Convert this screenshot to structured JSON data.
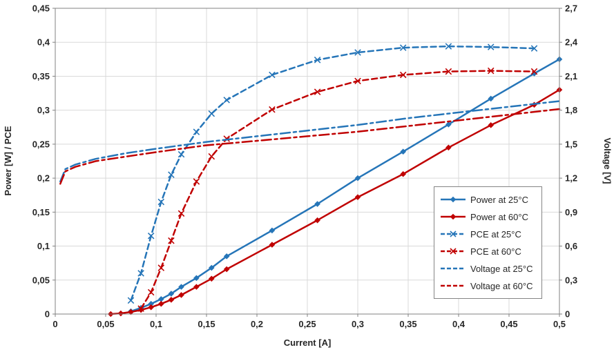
{
  "chart_data": {
    "type": "line",
    "title": "",
    "xlabel": "Current [A]",
    "ylabel_left": "Power [W] / PCE",
    "ylabel_right": "Voltage [V]",
    "xlim": [
      0,
      0.5
    ],
    "ylim_left": [
      0,
      0.45
    ],
    "ylim_right": [
      0,
      2.7
    ],
    "grid": true,
    "legend_position": "right-middle",
    "x_ticks": [
      0,
      0.05,
      0.1,
      0.15,
      0.2,
      0.25,
      0.3,
      0.35,
      0.4,
      0.45,
      0.5
    ],
    "x_tick_labels": [
      "0",
      "0,05",
      "0,1",
      "0,15",
      "0,2",
      "0,25",
      "0,3",
      "0,35",
      "0,4",
      "0,45",
      "0,5"
    ],
    "y_ticks_left": [
      0,
      0.05,
      0.1,
      0.15,
      0.2,
      0.25,
      0.3,
      0.35,
      0.4,
      0.45
    ],
    "y_tick_labels_left": [
      "0",
      "0,05",
      "0,1",
      "0,15",
      "0,2",
      "0,25",
      "0,3",
      "0,35",
      "0,4",
      "0,45"
    ],
    "y_ticks_right": [
      0,
      0.3,
      0.6,
      0.9,
      1.2,
      1.5,
      1.8,
      2.1,
      2.4,
      2.7
    ],
    "y_tick_labels_right": [
      "0",
      "0,3",
      "0,6",
      "0,9",
      "1,2",
      "1,5",
      "1,8",
      "2,1",
      "2,4",
      "2,7"
    ],
    "colors": {
      "blue": "#2575b8",
      "red": "#c00000",
      "grid": "#d9d9d9",
      "axis": "#808080",
      "text": "#262626"
    },
    "series": [
      {
        "name": "Power at 25°C",
        "color_key": "blue",
        "axis": "left",
        "line": "solid",
        "marker": "diamond",
        "x": [
          0.075,
          0.085,
          0.095,
          0.105,
          0.115,
          0.125,
          0.14,
          0.155,
          0.17,
          0.215,
          0.26,
          0.3,
          0.345,
          0.39,
          0.432,
          0.475,
          0.5
        ],
        "y": [
          0.004,
          0.009,
          0.015,
          0.022,
          0.03,
          0.04,
          0.053,
          0.068,
          0.085,
          0.123,
          0.162,
          0.2,
          0.239,
          0.279,
          0.317,
          0.354,
          0.375
        ]
      },
      {
        "name": "Power at 60°C",
        "color_key": "red",
        "axis": "left",
        "line": "solid",
        "marker": "diamond",
        "x": [
          0.055,
          0.065,
          0.075,
          0.085,
          0.095,
          0.105,
          0.115,
          0.125,
          0.14,
          0.155,
          0.17,
          0.215,
          0.26,
          0.3,
          0.345,
          0.39,
          0.432,
          0.475,
          0.5
        ],
        "y": [
          0.0,
          0.001,
          0.003,
          0.006,
          0.01,
          0.015,
          0.021,
          0.028,
          0.04,
          0.052,
          0.066,
          0.102,
          0.138,
          0.172,
          0.206,
          0.245,
          0.278,
          0.308,
          0.33
        ]
      },
      {
        "name": "PCE at 25°C",
        "color_key": "blue",
        "axis": "left",
        "line": "dashed",
        "marker": "x",
        "x": [
          0.075,
          0.085,
          0.095,
          0.105,
          0.115,
          0.125,
          0.14,
          0.155,
          0.17,
          0.215,
          0.26,
          0.3,
          0.345,
          0.39,
          0.432,
          0.475
        ],
        "y": [
          0.02,
          0.06,
          0.115,
          0.165,
          0.205,
          0.235,
          0.268,
          0.295,
          0.315,
          0.352,
          0.374,
          0.385,
          0.392,
          0.394,
          0.393,
          0.391
        ]
      },
      {
        "name": "PCE at 60°C",
        "color_key": "red",
        "axis": "left",
        "line": "dashed",
        "marker": "x",
        "x": [
          0.085,
          0.095,
          0.105,
          0.115,
          0.125,
          0.14,
          0.155,
          0.17,
          0.215,
          0.26,
          0.3,
          0.345,
          0.39,
          0.432,
          0.475
        ],
        "y": [
          0.008,
          0.032,
          0.068,
          0.108,
          0.148,
          0.195,
          0.232,
          0.258,
          0.301,
          0.327,
          0.343,
          0.352,
          0.357,
          0.358,
          0.357
        ]
      },
      {
        "name": "Voltage at 25°C",
        "color_key": "blue",
        "axis": "right",
        "line": "dashdot",
        "marker": "none",
        "x": [
          0.005,
          0.01,
          0.02,
          0.04,
          0.07,
          0.1,
          0.15,
          0.2,
          0.25,
          0.3,
          0.35,
          0.4,
          0.45,
          0.5
        ],
        "y": [
          1.17,
          1.28,
          1.32,
          1.37,
          1.42,
          1.46,
          1.52,
          1.57,
          1.62,
          1.67,
          1.73,
          1.78,
          1.83,
          1.88
        ]
      },
      {
        "name": "Voltage at 60°C",
        "color_key": "red",
        "axis": "right",
        "line": "dashdot",
        "marker": "none",
        "x": [
          0.005,
          0.01,
          0.02,
          0.04,
          0.07,
          0.1,
          0.15,
          0.2,
          0.25,
          0.3,
          0.35,
          0.4,
          0.45,
          0.5
        ],
        "y": [
          1.15,
          1.26,
          1.3,
          1.35,
          1.39,
          1.43,
          1.49,
          1.53,
          1.57,
          1.61,
          1.66,
          1.71,
          1.76,
          1.81
        ]
      }
    ]
  }
}
